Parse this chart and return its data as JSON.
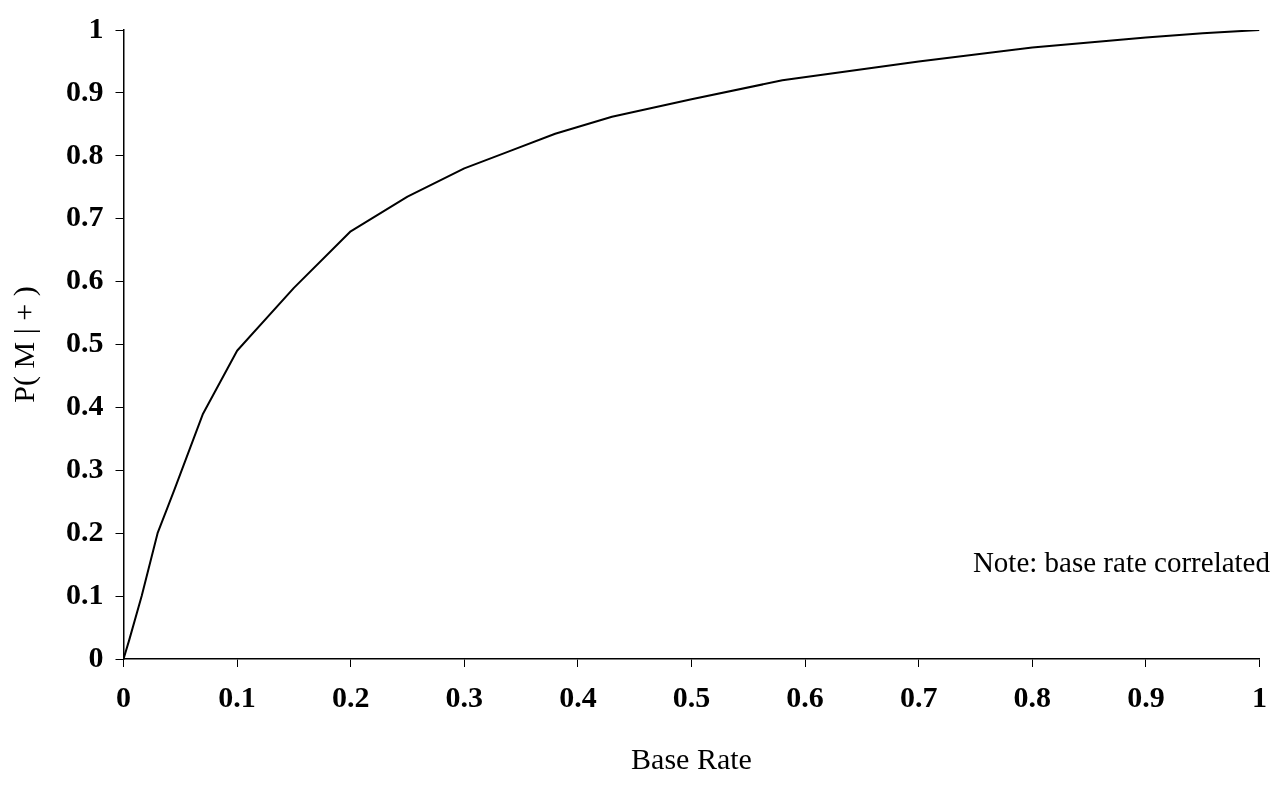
{
  "chart_data": {
    "type": "line",
    "xlabel": "Base Rate",
    "ylabel": "P( M | + )",
    "x": [
      0,
      0.005,
      0.016,
      0.03,
      0.045,
      0.07,
      0.1,
      0.15,
      0.2,
      0.25,
      0.3,
      0.38,
      0.43,
      0.5,
      0.58,
      0.7,
      0.8,
      0.9,
      0.95,
      1
    ],
    "series": [
      {
        "color": "#000000",
        "values": [
          0,
          0.03,
          0.1,
          0.2,
          0.27,
          0.39,
          0.49,
          0.59,
          0.68,
          0.735,
          0.78,
          0.835,
          0.862,
          0.89,
          0.92,
          0.95,
          0.972,
          0.988,
          0.995,
          1
        ]
      }
    ],
    "xlim": [
      0,
      1
    ],
    "xticks": [
      0,
      0.1,
      0.2,
      0.3,
      0.4,
      0.5,
      0.6,
      0.7,
      0.8,
      0.9,
      1
    ],
    "ylim": [
      0,
      1
    ],
    "yticks": [
      0,
      0.1,
      0.2,
      0.3,
      0.4,
      0.5,
      0.6,
      0.7,
      0.8,
      0.9,
      1
    ],
    "annotations": [
      "Note: base rate correlated"
    ],
    "grid": false,
    "legend": false,
    "marker": "none",
    "line_style": "solid"
  }
}
